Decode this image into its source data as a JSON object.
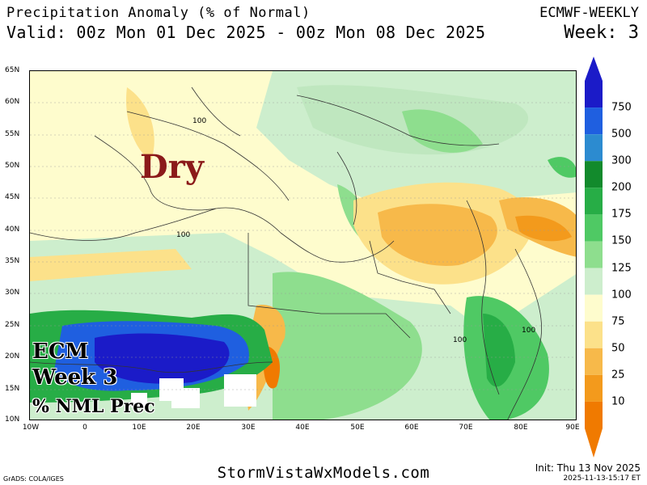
{
  "header": {
    "title": "Precipitation Anomaly (% of Normal)",
    "valid": "Valid: 00z Mon 01 Dec 2025 - 00z Mon 08 Dec 2025",
    "model": "ECMWF-WEEKLY",
    "week": "Week: 3"
  },
  "map": {
    "lat_labels": [
      "65N",
      "60N",
      "55N",
      "50N",
      "45N",
      "40N",
      "35N",
      "30N",
      "25N",
      "20N",
      "15N",
      "10N"
    ],
    "lon_labels": [
      "10W",
      "0",
      "10E",
      "20E",
      "30E",
      "40E",
      "50E",
      "60E",
      "70E",
      "80E",
      "90E"
    ],
    "contour_labels": [
      "100",
      "100",
      "100",
      "100"
    ],
    "annotations": {
      "dry": "Dry",
      "ecm_line1": "ECM",
      "ecm_line2": "Week 3",
      "ecm_line3": "% NML Prec"
    }
  },
  "colorbar": {
    "levels": [
      "750",
      "500",
      "300",
      "200",
      "175",
      "150",
      "125",
      "100",
      "75",
      "50",
      "25",
      "10"
    ],
    "colors": [
      "#1b1bc8",
      "#1f5fe0",
      "#2c8bd0",
      "#128a2c",
      "#27ad46",
      "#4fc964",
      "#8ede8e",
      "#cdeecd",
      "#fefccd",
      "#fce18a",
      "#f7b94a",
      "#f39a1c",
      "#f07a00"
    ]
  },
  "footer": {
    "credit": "GrADS: COLA/IGES",
    "brand": "StormVistaWxModels.com",
    "init": "Init: Thu 13 Nov 2025",
    "timestamp": "2025-11-13-15:17 ET"
  }
}
